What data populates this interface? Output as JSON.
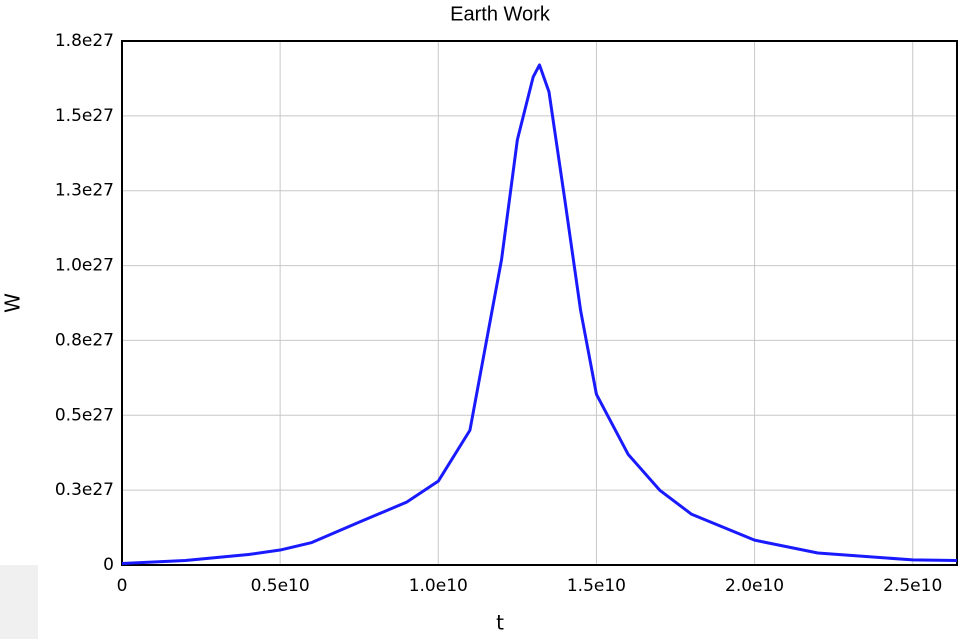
{
  "chart_data": {
    "type": "line",
    "title": "Earth Work",
    "x_label": "t",
    "y_label": "W",
    "x": [
      0,
      2000000000.0,
      4000000000.0,
      5000000000.0,
      6000000000.0,
      7500000000.0,
      9000000000.0,
      10000000000.0,
      11000000000.0,
      12000000000.0,
      12500000000.0,
      13000000000.0,
      13200000000.0,
      13500000000.0,
      14000000000.0,
      14500000000.0,
      15000000000.0,
      16000000000.0,
      17000000000.0,
      18000000000.0,
      20000000000.0,
      22000000000.0,
      25000000000.0,
      26400000000.0
    ],
    "series": [
      {
        "name": "W",
        "color": "#1a1aff",
        "values": [
          5e+24,
          1.5e+25,
          3.5e+25,
          5e+25,
          7.5e+25,
          1.43e+26,
          2.1e+26,
          2.8e+26,
          4.5e+26,
          1.02e+27,
          1.42e+27,
          1.63e+27,
          1.67e+27,
          1.58e+27,
          1.22e+27,
          8.5e+26,
          5.7e+26,
          3.7e+26,
          2.5e+26,
          1.7e+26,
          8.3e+25,
          4e+25,
          1.7e+25,
          1.5e+25
        ]
      }
    ],
    "xlim": [
      0,
      26400000000.0
    ],
    "ylim": [
      0,
      1.75e+27
    ],
    "xticks": [
      0,
      {
        "value": 5000000000.0,
        "label": "0.5e10"
      },
      {
        "value": 10000000000.0,
        "label": "1.0e10"
      },
      {
        "value": 15000000000.0,
        "label": "1.5e10"
      },
      {
        "value": 20000000000.0,
        "label": "2.0e10"
      },
      {
        "value": 25000000000.0,
        "label": "2.5e10"
      }
    ],
    "yticks": [
      0,
      {
        "value": 2.5e+26,
        "label": "0.3e27"
      },
      {
        "value": 5e+26,
        "label": "0.5e27"
      },
      {
        "value": 7.5e+26,
        "label": "0.8e27"
      },
      {
        "value": 1e+27,
        "label": "1.0e27"
      },
      {
        "value": 1.25e+27,
        "label": "1.3e27"
      },
      {
        "value": 1.5e+27,
        "label": "1.5e27"
      },
      {
        "value": 1.75e+27,
        "label": "1.8e27"
      }
    ],
    "grid": true
  }
}
